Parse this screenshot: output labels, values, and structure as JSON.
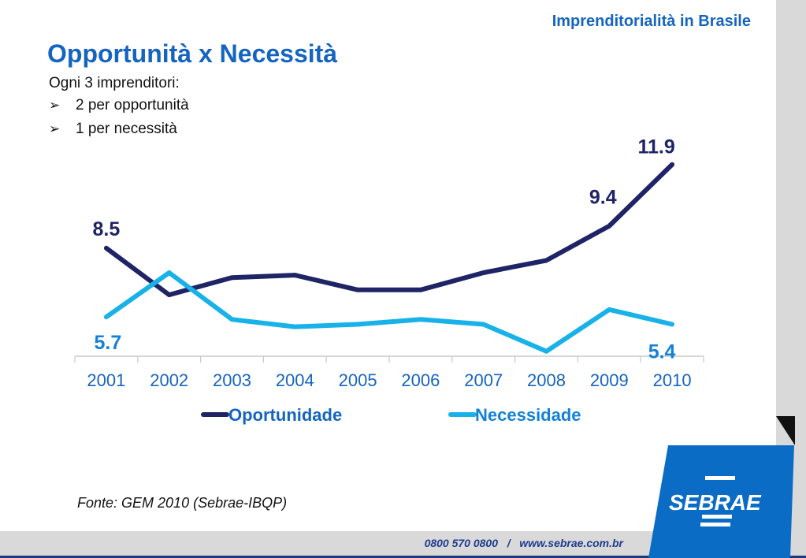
{
  "header": {
    "section_title": "Imprenditorialità in Brasile"
  },
  "slide": {
    "title": "Opportunità x Necessità",
    "intro": "Ogni 3 imprenditori:",
    "bullets": [
      "2 per opportunità",
      "1 per necessità"
    ],
    "source": "Fonte: GEM 2010 (Sebrae-IBQP)"
  },
  "footer": {
    "phone": "0800 570 0800",
    "separator": "/",
    "website": "www.sebrae.com.br",
    "logo_text": "SEBRAE"
  },
  "colors": {
    "accent": "#1565c0",
    "oportunidade": "#1f2466",
    "necessidade": "#19b2e8",
    "logo_blue": "#0a6cc4"
  },
  "chart_data": {
    "type": "line",
    "categories": [
      "2001",
      "2002",
      "2003",
      "2004",
      "2005",
      "2006",
      "2007",
      "2008",
      "2009",
      "2010"
    ],
    "series": [
      {
        "name": "Oportunidade",
        "color": "#1f2466",
        "values": [
          8.5,
          6.6,
          7.3,
          7.4,
          6.8,
          6.8,
          7.5,
          8.0,
          9.4,
          11.9
        ],
        "data_labels": [
          {
            "index": 0,
            "text": "8.5"
          },
          {
            "index": 8,
            "text": "9.4"
          },
          {
            "index": 9,
            "text": "11.9"
          }
        ]
      },
      {
        "name": "Necessidade",
        "color": "#19b2e8",
        "values": [
          5.7,
          7.5,
          5.6,
          5.3,
          5.4,
          5.6,
          5.4,
          4.3,
          6.0,
          5.4
        ],
        "data_labels": [
          {
            "index": 0,
            "text": "5.7"
          },
          {
            "index": 9,
            "text": "5.4"
          }
        ]
      }
    ],
    "ylim": [
      0,
      14
    ],
    "grid": false,
    "legend_position": "bottom"
  }
}
